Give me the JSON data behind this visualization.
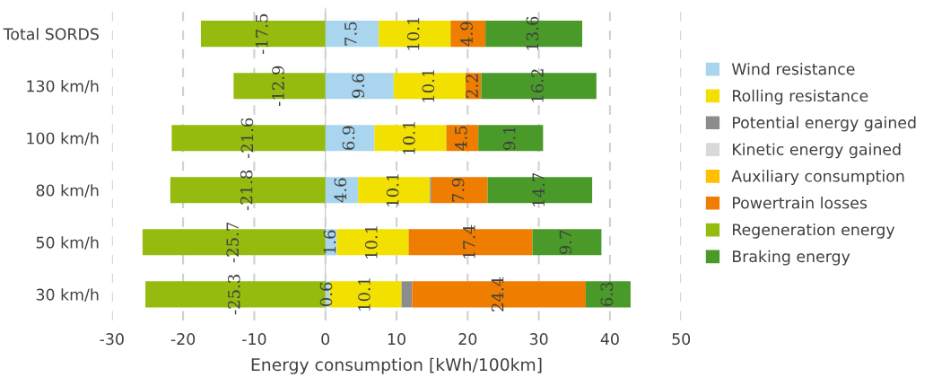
{
  "chart_data": {
    "type": "bar",
    "orientation": "horizontal",
    "stacked": true,
    "xlabel": "Energy consumption [kWh/100km]",
    "categories": [
      "Total SORDS",
      "130 km/h",
      "100 km/h",
      "80 km/h",
      "50 km/h",
      "30 km/h"
    ],
    "xlim": [
      -30,
      50
    ],
    "xticks": [
      -30,
      -20,
      -10,
      0,
      10,
      20,
      30,
      40,
      50
    ],
    "grid": "x",
    "legend": "right",
    "series": [
      {
        "name": "Wind resistance",
        "color": "#a9d5ee",
        "values": [
          7.5,
          9.6,
          6.9,
          4.6,
          1.6,
          0.6
        ],
        "value_labels": [
          "7.5",
          "9.6",
          "6.9",
          "4.6",
          "1.6",
          "0.6"
        ]
      },
      {
        "name": "Rolling resistance",
        "color": "#f2e100",
        "values": [
          10.1,
          10.1,
          10.1,
          10.1,
          10.1,
          10.1
        ],
        "value_labels": [
          "10.1",
          "10.1",
          "10.1",
          "10.1",
          "10.1",
          "10.1"
        ]
      },
      {
        "name": "Potential energy gained",
        "color": "#8c8c8c",
        "values": [
          null,
          null,
          null,
          0.2,
          null,
          1.5
        ],
        "value_labels": [
          null,
          null,
          null,
          null,
          null,
          null
        ]
      },
      {
        "name": "Kinetic energy gained",
        "color": "#d9d9d9",
        "values": [
          null,
          null,
          null,
          null,
          null,
          null
        ],
        "value_labels": [
          null,
          null,
          null,
          null,
          null,
          null
        ]
      },
      {
        "name": "Auxiliary consumption",
        "color": "#ffc000",
        "values": [
          null,
          null,
          null,
          null,
          null,
          null
        ],
        "value_labels": [
          null,
          null,
          null,
          null,
          null,
          null
        ]
      },
      {
        "name": "Powertrain losses",
        "color": "#ef7d00",
        "values": [
          4.9,
          2.2,
          4.5,
          7.9,
          17.4,
          24.4
        ],
        "value_labels": [
          "4.9",
          "2.2",
          "4.5",
          "7.9",
          "17.4",
          "24.4"
        ]
      },
      {
        "name": "Regeneration energy",
        "color": "#95bb0f",
        "values": [
          -17.5,
          -12.9,
          -21.6,
          -21.8,
          -25.7,
          -25.3
        ],
        "value_labels": [
          "-17.5",
          "-12.9",
          "-21.6",
          "-21.8",
          "-25.7",
          "-25.3"
        ]
      },
      {
        "name": "Braking energy",
        "color": "#4a9a2a",
        "values": [
          13.6,
          16.2,
          9.1,
          14.7,
          9.7,
          6.3
        ],
        "value_labels": [
          "13.6",
          "16.2",
          "9.1",
          "14.7",
          "9.7",
          "6.3"
        ]
      }
    ]
  }
}
